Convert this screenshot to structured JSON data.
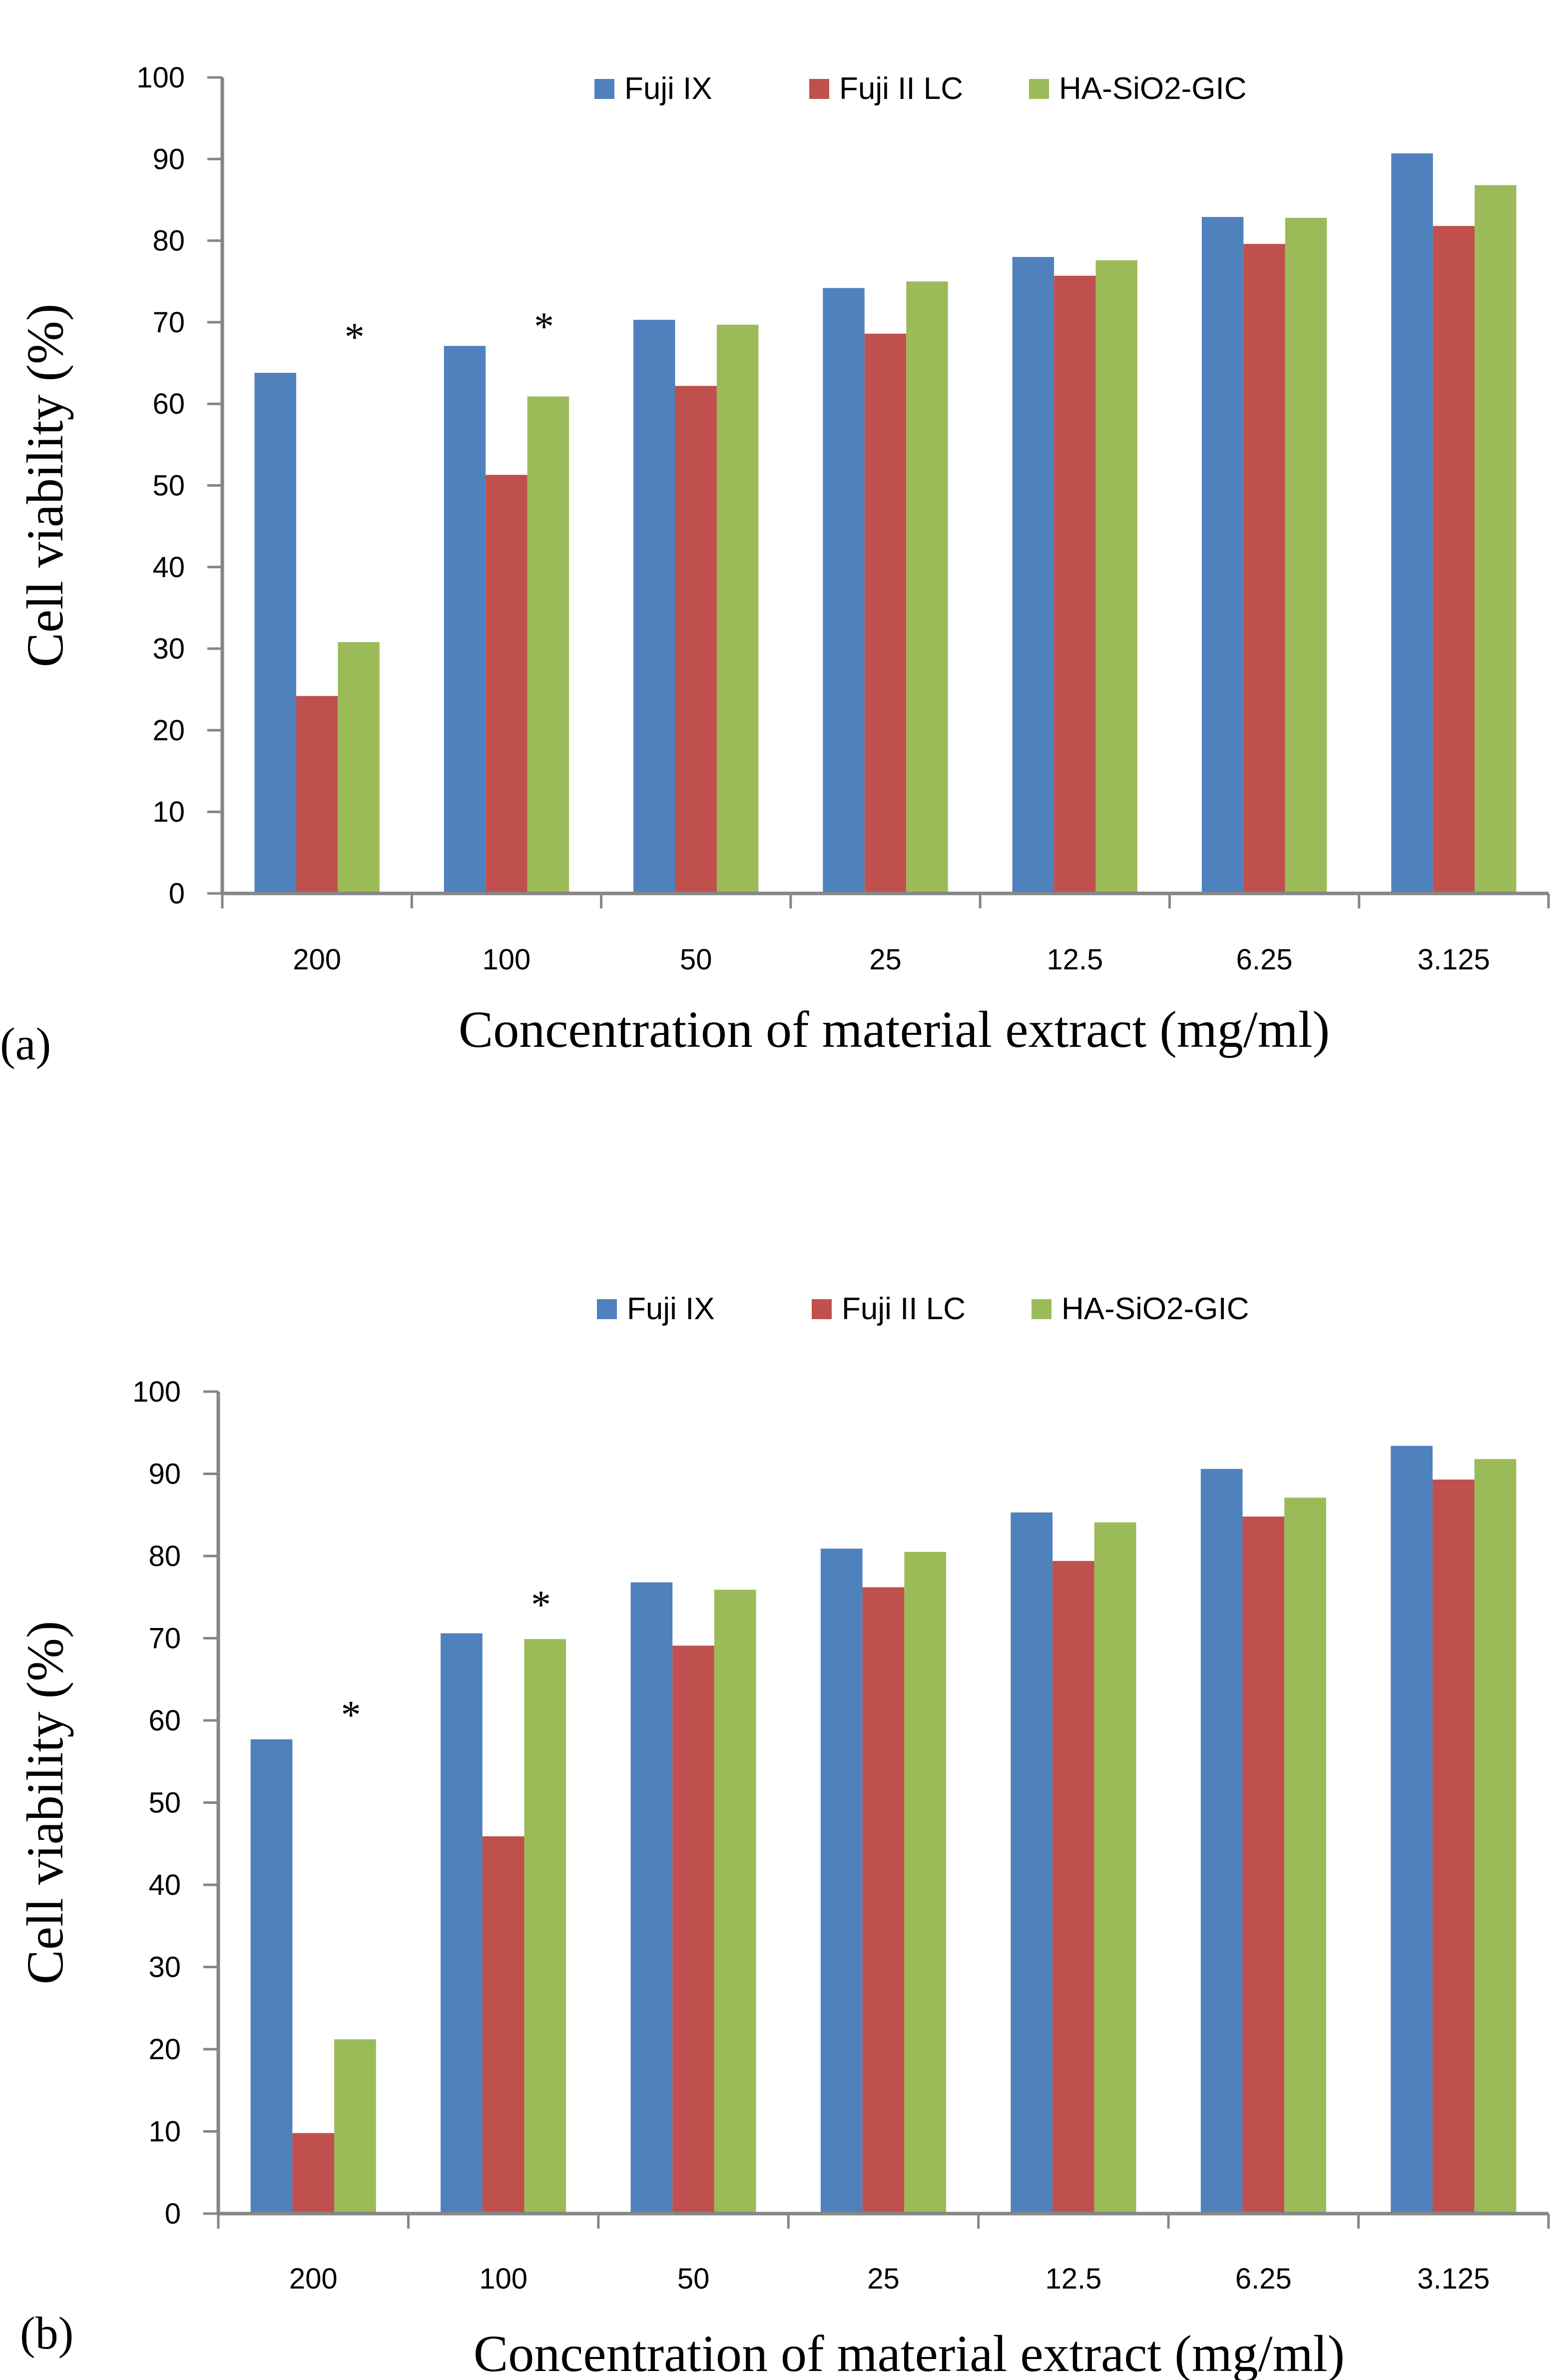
{
  "series_colors": {
    "Fuji IX": "#4f81bd",
    "Fuji II LC": "#c0504d",
    "HA-SiO2-GIC": "#9bbb59"
  },
  "chart_data": [
    {
      "type": "bar",
      "panel_label": "(a)",
      "title": "",
      "xlabel": "Concentration of material extract (mg/ml)",
      "ylabel": "Cell viability (%)",
      "categories": [
        "200",
        "100",
        "50",
        "25",
        "12.5",
        "6.25",
        "3.125"
      ],
      "ylim": [
        0,
        100
      ],
      "yticks": [
        0,
        10,
        20,
        30,
        40,
        50,
        60,
        70,
        80,
        90,
        100
      ],
      "grid": false,
      "legend": {
        "position": "top-center",
        "entries": [
          "Fuji IX",
          "Fuji II LC",
          "HA-SiO2-GIC"
        ]
      },
      "series": [
        {
          "name": "Fuji IX",
          "values": [
            63.8,
            67.1,
            70.3,
            74.2,
            78.0,
            82.9,
            90.7
          ]
        },
        {
          "name": "Fuji II LC",
          "values": [
            24.2,
            51.3,
            62.2,
            68.6,
            75.7,
            79.6,
            81.8
          ]
        },
        {
          "name": "HA-SiO2-GIC",
          "values": [
            30.8,
            60.9,
            69.7,
            75.0,
            77.6,
            82.8,
            86.8
          ]
        }
      ],
      "annotations": [
        {
          "text": "*",
          "category": "200",
          "y": 69
        },
        {
          "text": "*",
          "category": "100",
          "y": 70.3
        }
      ]
    },
    {
      "type": "bar",
      "panel_label": "(b)",
      "title": "",
      "xlabel": "Concentration of material extract (mg/ml)",
      "ylabel": "Cell viability (%)",
      "categories": [
        "200",
        "100",
        "50",
        "25",
        "12.5",
        "6.25",
        "3.125"
      ],
      "ylim": [
        0,
        100
      ],
      "yticks": [
        0,
        10,
        20,
        30,
        40,
        50,
        60,
        70,
        80,
        90,
        100
      ],
      "grid": false,
      "legend": {
        "position": "top-center",
        "entries": [
          "Fuji IX",
          "Fuji II LC",
          "HA-SiO2-GIC"
        ]
      },
      "series": [
        {
          "name": "Fuji IX",
          "values": [
            57.7,
            70.6,
            76.8,
            80.9,
            85.3,
            90.6,
            93.4
          ]
        },
        {
          "name": "Fuji II LC",
          "values": [
            9.8,
            45.9,
            69.1,
            76.2,
            79.4,
            84.8,
            89.3
          ]
        },
        {
          "name": "HA-SiO2-GIC",
          "values": [
            21.2,
            69.9,
            75.9,
            80.5,
            84.1,
            87.1,
            91.8
          ]
        }
      ],
      "annotations": [
        {
          "text": "*",
          "category": "200",
          "y": 61.5
        },
        {
          "text": "*",
          "category": "100",
          "y": 74.9
        }
      ]
    }
  ]
}
